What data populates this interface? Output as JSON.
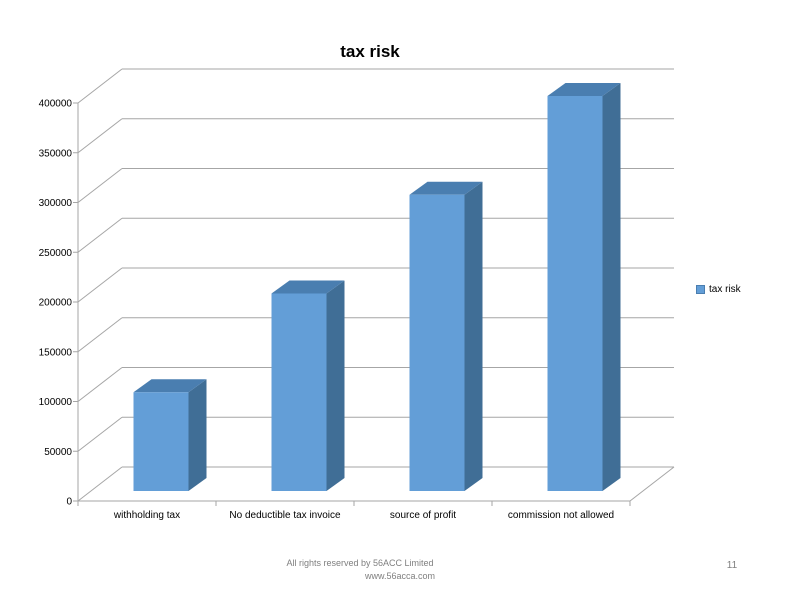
{
  "slide": {
    "footer_line1": "All rights reserved by 56ACC Limited",
    "footer_line2": "www.56acca.com",
    "page_number": "11"
  },
  "chart_data": {
    "type": "bar",
    "subtype": "3d-column",
    "title": "tax risk",
    "categories": [
      "withholding tax",
      "No deductible tax invoice",
      "source of profit",
      "commission not allowed"
    ],
    "series": [
      {
        "name": "tax risk",
        "values": [
          100000,
          200000,
          300000,
          400000
        ]
      }
    ],
    "ylim": [
      0,
      400000
    ],
    "ytick_step": 50000,
    "ytick_labels": [
      "0",
      "50000",
      "100000",
      "150000",
      "200000",
      "250000",
      "300000",
      "350000",
      "400000"
    ],
    "grid": true,
    "legend": {
      "position": "right",
      "entries": [
        "tax risk"
      ]
    },
    "colors": {
      "bar_front": "#639ED7",
      "bar_top": "#4A7EB0",
      "bar_side": "#406E96",
      "gridline": "#A6A6A6",
      "axis_text": "#000000",
      "footer_text": "#7F7F7F"
    }
  }
}
